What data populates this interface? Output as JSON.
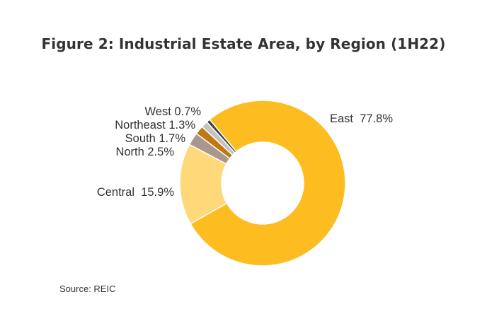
{
  "chart_data": {
    "type": "pie",
    "title": "Figure 2: Industrial Estate Area, by Region (1H22)",
    "source": "Source: REIC",
    "slices": [
      {
        "label": "East",
        "value": 77.8,
        "display": "77.8%",
        "color": "#FDBC1F"
      },
      {
        "label": "Central",
        "value": 15.9,
        "display": "15.9%",
        "color": "#FFD87A"
      },
      {
        "label": "North",
        "value": 2.5,
        "display": "2.5%",
        "color": "#A9978E"
      },
      {
        "label": "South",
        "value": 1.7,
        "display": "1.7%",
        "color": "#C07714"
      },
      {
        "label": "Northeast",
        "value": 1.3,
        "display": "1.3%",
        "color": "#C7C2BE"
      },
      {
        "label": "West",
        "value": 0.7,
        "display": "0.7%",
        "color": "#404040"
      }
    ]
  }
}
